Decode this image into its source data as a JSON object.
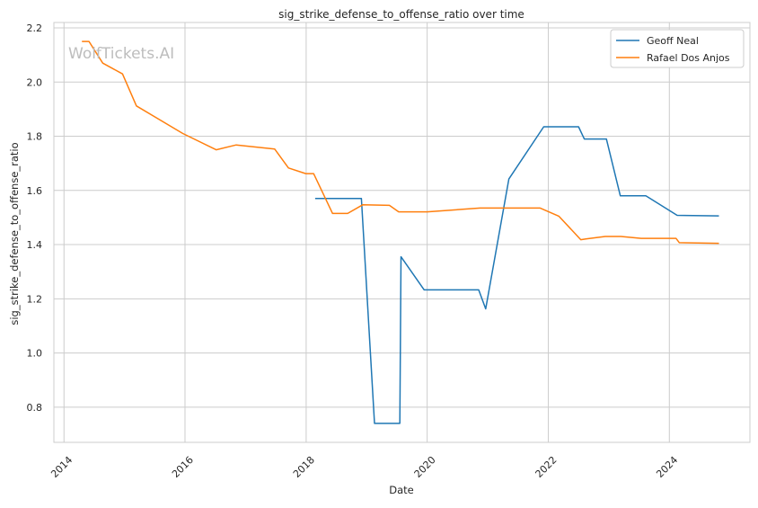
{
  "chart_data": {
    "type": "line",
    "title": "sig_strike_defense_to_offense_ratio over time",
    "xlabel": "Date",
    "ylabel": "sig_strike_defense_to_offense_ratio",
    "watermark": "WolfTickets.AI",
    "xlim": [
      "2013-11-01",
      "2025-05-01"
    ],
    "ylim": [
      0.67,
      2.22
    ],
    "x_ticks": [
      {
        "label": "2014",
        "date": "2014-01-01"
      },
      {
        "label": "2016",
        "date": "2016-01-01"
      },
      {
        "label": "2018",
        "date": "2018-01-01"
      },
      {
        "label": "2020",
        "date": "2020-01-01"
      },
      {
        "label": "2022",
        "date": "2022-01-01"
      },
      {
        "label": "2024",
        "date": "2024-01-01"
      }
    ],
    "y_ticks": [
      {
        "label": "0.8",
        "value": 0.8
      },
      {
        "label": "1.0",
        "value": 1.0
      },
      {
        "label": "1.2",
        "value": 1.2
      },
      {
        "label": "1.4",
        "value": 1.4
      },
      {
        "label": "1.6",
        "value": 1.6
      },
      {
        "label": "1.8",
        "value": 1.8
      },
      {
        "label": "2.0",
        "value": 2.0
      },
      {
        "label": "2.2",
        "value": 2.2
      }
    ],
    "grid": true,
    "legend_position": "top-right",
    "series": [
      {
        "name": "Geoff Neal",
        "color": "#1f77b4",
        "points": [
          {
            "x": "2018-02-24",
            "y": 1.57
          },
          {
            "x": "2018-11-30",
            "y": 1.57
          },
          {
            "x": "2019-02-17",
            "y": 0.74
          },
          {
            "x": "2019-07-20",
            "y": 0.74
          },
          {
            "x": "2019-07-27",
            "y": 1.355
          },
          {
            "x": "2019-12-14",
            "y": 1.233
          },
          {
            "x": "2020-11-07",
            "y": 1.233
          },
          {
            "x": "2020-12-19",
            "y": 1.163
          },
          {
            "x": "2021-05-08",
            "y": 1.642
          },
          {
            "x": "2021-12-04",
            "y": 1.835
          },
          {
            "x": "2022-07-02",
            "y": 1.835
          },
          {
            "x": "2022-08-06",
            "y": 1.79
          },
          {
            "x": "2022-12-17",
            "y": 1.79
          },
          {
            "x": "2023-03-11",
            "y": 1.58
          },
          {
            "x": "2023-08-12",
            "y": 1.58
          },
          {
            "x": "2024-02-17",
            "y": 1.508
          },
          {
            "x": "2024-10-26",
            "y": 1.506
          }
        ]
      },
      {
        "name": "Rafael Dos Anjos",
        "color": "#ff7f0e",
        "points": [
          {
            "x": "2014-04-19",
            "y": 2.15
          },
          {
            "x": "2014-06-01",
            "y": 2.15
          },
          {
            "x": "2014-08-23",
            "y": 2.07
          },
          {
            "x": "2014-12-20",
            "y": 2.03
          },
          {
            "x": "2015-03-14",
            "y": 1.912
          },
          {
            "x": "2015-12-19",
            "y": 1.81
          },
          {
            "x": "2016-07-07",
            "y": 1.75
          },
          {
            "x": "2016-11-05",
            "y": 1.768
          },
          {
            "x": "2017-06-25",
            "y": 1.753
          },
          {
            "x": "2017-09-16",
            "y": 1.683
          },
          {
            "x": "2017-12-30",
            "y": 1.662
          },
          {
            "x": "2018-02-15",
            "y": 1.662
          },
          {
            "x": "2018-06-09",
            "y": 1.515
          },
          {
            "x": "2018-09-08",
            "y": 1.515
          },
          {
            "x": "2018-12-08",
            "y": 1.547
          },
          {
            "x": "2019-05-18",
            "y": 1.545
          },
          {
            "x": "2019-07-13",
            "y": 1.521
          },
          {
            "x": "2020-01-02",
            "y": 1.521
          },
          {
            "x": "2020-11-14",
            "y": 1.535
          },
          {
            "x": "2021-11-13",
            "y": 1.535
          },
          {
            "x": "2022-03-05",
            "y": 1.505
          },
          {
            "x": "2022-07-16",
            "y": 1.418
          },
          {
            "x": "2022-08-15",
            "y": 1.421
          },
          {
            "x": "2022-12-10",
            "y": 1.43
          },
          {
            "x": "2023-03-15",
            "y": 1.43
          },
          {
            "x": "2023-07-15",
            "y": 1.423
          },
          {
            "x": "2024-02-10",
            "y": 1.423
          },
          {
            "x": "2024-03-01",
            "y": 1.407
          },
          {
            "x": "2024-10-26",
            "y": 1.405
          }
        ]
      }
    ]
  }
}
